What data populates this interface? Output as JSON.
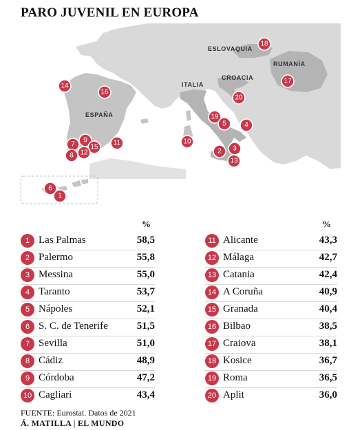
{
  "title": "PARO JUVENIL EN EUROPA",
  "country_labels": [
    "ESLOVAQUIA",
    "RUMANÍA",
    "ITALIA",
    "CROACIA",
    "ESPAÑA"
  ],
  "percent_header": "%",
  "cities": [
    {
      "n": "1",
      "name": "Las Palmas",
      "pct": "58,5"
    },
    {
      "n": "2",
      "name": "Palermo",
      "pct": "55,8"
    },
    {
      "n": "3",
      "name": "Messina",
      "pct": "55,0"
    },
    {
      "n": "4",
      "name": "Taranto",
      "pct": "53,7"
    },
    {
      "n": "5",
      "name": "Nápoles",
      "pct": "52,1"
    },
    {
      "n": "6",
      "name": "S. C. de Tenerife",
      "pct": "51,5"
    },
    {
      "n": "7",
      "name": "Sevilla",
      "pct": "51,0"
    },
    {
      "n": "8",
      "name": "Cádiz",
      "pct": "48,9"
    },
    {
      "n": "9",
      "name": "Córdoba",
      "pct": "47,2"
    },
    {
      "n": "10",
      "name": "Cagliari",
      "pct": "43,4"
    },
    {
      "n": "11",
      "name": "Alicante",
      "pct": "43,3"
    },
    {
      "n": "12",
      "name": "Málaga",
      "pct": "42,7"
    },
    {
      "n": "13",
      "name": "Catania",
      "pct": "42,4"
    },
    {
      "n": "14",
      "name": "A Coruña",
      "pct": "40,9"
    },
    {
      "n": "15",
      "name": "Granada",
      "pct": "40,4"
    },
    {
      "n": "16",
      "name": "Bilbao",
      "pct": "38,5"
    },
    {
      "n": "17",
      "name": "Craiova",
      "pct": "38,1"
    },
    {
      "n": "18",
      "name": "Kosice",
      "pct": "36,7"
    },
    {
      "n": "19",
      "name": "Roma",
      "pct": "36,5"
    },
    {
      "n": "20",
      "name": "Aplit",
      "pct": "36,0"
    }
  ],
  "source": "FUENTE: Eurostat. Datos de 2021",
  "credit": "Á. MATILLA | EL MUNDO",
  "colors": {
    "marker": "#c8384a",
    "land": "#c8c8c8",
    "highlight": "#b4b4b4",
    "sea": "#ffffff"
  }
}
